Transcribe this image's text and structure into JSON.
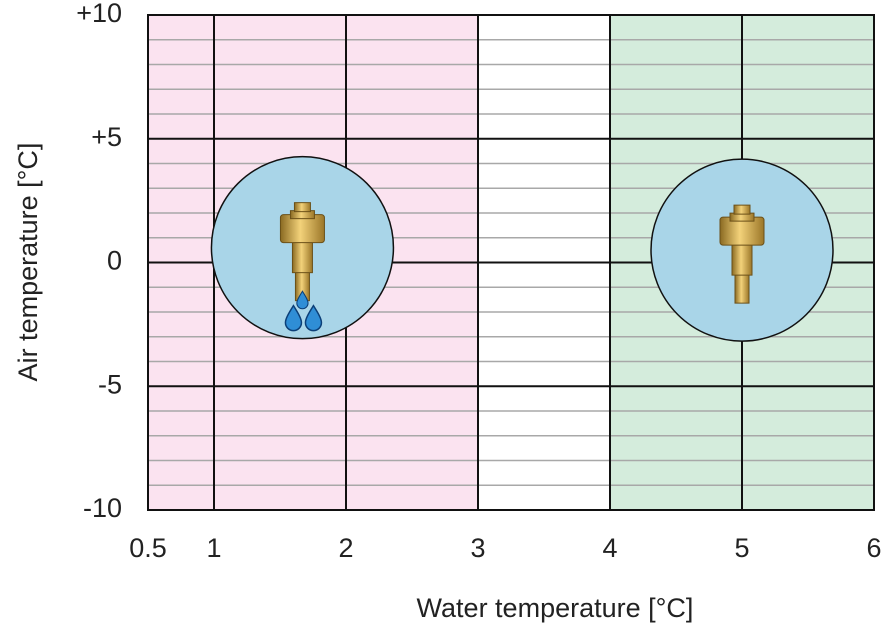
{
  "chart_data": {
    "type": "scatter",
    "xlabel": "Water temperature [°C]",
    "ylabel": "Air temperature [°C]",
    "xlim": [
      0.5,
      6
    ],
    "ylim": [
      -10,
      10
    ],
    "xticks": [
      0.5,
      1,
      2,
      3,
      4,
      5,
      6
    ],
    "yticks": [
      {
        "value": 10,
        "label": "+10"
      },
      {
        "value": 5,
        "label": "+5"
      },
      0,
      -5,
      -10
    ],
    "minor_grid_step": 1,
    "bands": [
      {
        "from": 0.5,
        "to": 3,
        "color": "#fbe3f0"
      },
      {
        "from": 3,
        "to": 4,
        "color": "#ffffff"
      },
      {
        "from": 4,
        "to": 6,
        "color": "#d4ecdc"
      }
    ],
    "series": [
      {
        "color": "#a9d5e8",
        "x": [
          1.67,
          5.0
        ],
        "y": [
          0.6,
          0.5
        ]
      }
    ]
  }
}
